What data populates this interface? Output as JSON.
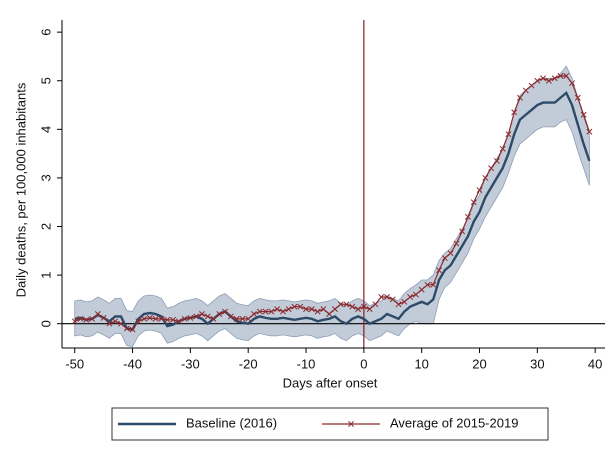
{
  "chart_data": {
    "type": "line",
    "xlabel": "Days after onset",
    "ylabel": "Daily deaths, per 100,000 inhabitants",
    "x": [
      -50,
      -49,
      -48,
      -47,
      -46,
      -45,
      -44,
      -43,
      -42,
      -41,
      -40,
      -39,
      -38,
      -37,
      -36,
      -35,
      -34,
      -33,
      -32,
      -31,
      -30,
      -29,
      -28,
      -27,
      -26,
      -25,
      -24,
      -23,
      -22,
      -21,
      -20,
      -19,
      -18,
      -17,
      -16,
      -15,
      -14,
      -13,
      -12,
      -11,
      -10,
      -9,
      -8,
      -7,
      -6,
      -5,
      -4,
      -3,
      -2,
      -1,
      0,
      1,
      2,
      3,
      4,
      5,
      6,
      7,
      8,
      9,
      10,
      11,
      12,
      13,
      14,
      15,
      16,
      17,
      18,
      19,
      20,
      21,
      22,
      23,
      24,
      25,
      26,
      27,
      28,
      29,
      30,
      31,
      32,
      33,
      34,
      35,
      36,
      37,
      38,
      39
    ],
    "series": [
      {
        "name": "Baseline (2016)",
        "color": "#2d4a68",
        "values": [
          0.1,
          0.12,
          0.08,
          0.1,
          0.18,
          0.12,
          0.05,
          0.15,
          0.15,
          -0.1,
          -0.12,
          0.1,
          0.2,
          0.22,
          0.2,
          0.15,
          -0.05,
          -0.02,
          0.05,
          0.1,
          0.12,
          0.15,
          0.1,
          0.0,
          0.1,
          0.2,
          0.25,
          0.15,
          0.05,
          0.02,
          0.0,
          0.1,
          0.15,
          0.12,
          0.1,
          0.1,
          0.12,
          0.1,
          0.08,
          0.1,
          0.12,
          0.1,
          0.05,
          0.08,
          0.1,
          0.15,
          0.05,
          0.0,
          0.1,
          0.15,
          0.1,
          0.0,
          0.05,
          0.1,
          0.2,
          0.15,
          0.1,
          0.25,
          0.35,
          0.4,
          0.45,
          0.4,
          0.5,
          0.9,
          1.1,
          1.2,
          1.4,
          1.6,
          1.8,
          2.1,
          2.3,
          2.6,
          2.8,
          3.0,
          3.2,
          3.5,
          3.9,
          4.2,
          4.3,
          4.4,
          4.5,
          4.55,
          4.55,
          4.55,
          4.65,
          4.75,
          4.5,
          4.1,
          3.7,
          3.35
        ]
      },
      {
        "name": "Average of 2015-2019",
        "color": "#8b2a2e",
        "values": [
          0.05,
          0.1,
          0.08,
          0.1,
          0.2,
          0.12,
          0.0,
          0.05,
          0.0,
          -0.1,
          -0.12,
          0.05,
          0.1,
          0.12,
          0.1,
          0.1,
          0.08,
          0.08,
          0.05,
          0.1,
          0.12,
          0.15,
          0.2,
          0.15,
          0.1,
          0.2,
          0.25,
          0.15,
          0.1,
          0.1,
          0.1,
          0.2,
          0.25,
          0.25,
          0.25,
          0.3,
          0.25,
          0.3,
          0.35,
          0.35,
          0.3,
          0.3,
          0.25,
          0.3,
          0.2,
          0.3,
          0.4,
          0.4,
          0.35,
          0.3,
          0.35,
          0.3,
          0.4,
          0.55,
          0.55,
          0.5,
          0.4,
          0.45,
          0.55,
          0.6,
          0.7,
          0.8,
          0.8,
          1.1,
          1.35,
          1.45,
          1.65,
          1.9,
          2.2,
          2.5,
          2.75,
          3.0,
          3.2,
          3.35,
          3.6,
          3.9,
          4.35,
          4.65,
          4.8,
          4.9,
          5.0,
          5.05,
          5.0,
          5.05,
          5.1,
          5.1,
          4.95,
          4.65,
          4.3,
          3.95
        ]
      }
    ],
    "band": {
      "color": "#c2ccd9",
      "edge_color": "#8d9db2",
      "lower": [
        -0.25,
        -0.23,
        -0.27,
        -0.25,
        -0.17,
        -0.23,
        -0.3,
        -0.2,
        -0.2,
        -0.45,
        -0.47,
        -0.25,
        -0.15,
        -0.13,
        -0.15,
        -0.2,
        -0.4,
        -0.37,
        -0.3,
        -0.25,
        -0.23,
        -0.2,
        -0.25,
        -0.35,
        -0.25,
        -0.15,
        -0.1,
        -0.2,
        -0.3,
        -0.33,
        -0.35,
        -0.25,
        -0.2,
        -0.23,
        -0.25,
        -0.25,
        -0.23,
        -0.25,
        -0.27,
        -0.25,
        -0.23,
        -0.25,
        -0.3,
        -0.27,
        -0.25,
        -0.2,
        -0.3,
        -0.35,
        -0.25,
        -0.2,
        -0.25,
        -0.35,
        -0.3,
        -0.25,
        -0.15,
        -0.2,
        -0.25,
        -0.1,
        0.0,
        0.05,
        0.0,
        0.0,
        0.0,
        0.5,
        0.75,
        0.85,
        1.05,
        1.25,
        1.45,
        1.75,
        1.95,
        2.2,
        2.4,
        2.6,
        2.8,
        3.1,
        3.45,
        3.7,
        3.8,
        3.9,
        4.0,
        4.05,
        4.05,
        4.05,
        4.15,
        4.2,
        3.95,
        3.55,
        3.2,
        2.85
      ],
      "upper": [
        0.47,
        0.49,
        0.45,
        0.47,
        0.55,
        0.49,
        0.42,
        0.52,
        0.52,
        0.27,
        0.25,
        0.47,
        0.57,
        0.59,
        0.57,
        0.52,
        0.32,
        0.35,
        0.42,
        0.47,
        0.49,
        0.52,
        0.47,
        0.37,
        0.47,
        0.57,
        0.62,
        0.52,
        0.42,
        0.39,
        0.37,
        0.47,
        0.52,
        0.49,
        0.47,
        0.47,
        0.49,
        0.47,
        0.45,
        0.47,
        0.49,
        0.47,
        0.42,
        0.45,
        0.47,
        0.52,
        0.42,
        0.37,
        0.47,
        0.52,
        0.47,
        0.37,
        0.42,
        0.47,
        0.57,
        0.52,
        0.47,
        0.62,
        0.72,
        0.8,
        0.9,
        0.9,
        1.0,
        1.3,
        1.45,
        1.55,
        1.75,
        1.95,
        2.15,
        2.45,
        2.65,
        3.0,
        3.2,
        3.4,
        3.6,
        3.9,
        4.35,
        4.7,
        4.8,
        4.9,
        5.0,
        5.05,
        5.05,
        5.05,
        5.15,
        5.3,
        5.05,
        4.65,
        4.25,
        3.9
      ]
    },
    "reference_lines": {
      "x": 0,
      "x_color": "#8b1a1a",
      "y": 0,
      "y_color": "#000000"
    },
    "xlim": [
      -52.2,
      41.7
    ],
    "xticks": [
      -50,
      -40,
      -30,
      -20,
      -10,
      0,
      10,
      20,
      30,
      40
    ],
    "ylim": [
      -0.5,
      6.25
    ],
    "yticks": [
      0,
      1,
      2,
      3,
      4,
      5,
      6
    ],
    "grid": false,
    "legend": "bottom"
  }
}
